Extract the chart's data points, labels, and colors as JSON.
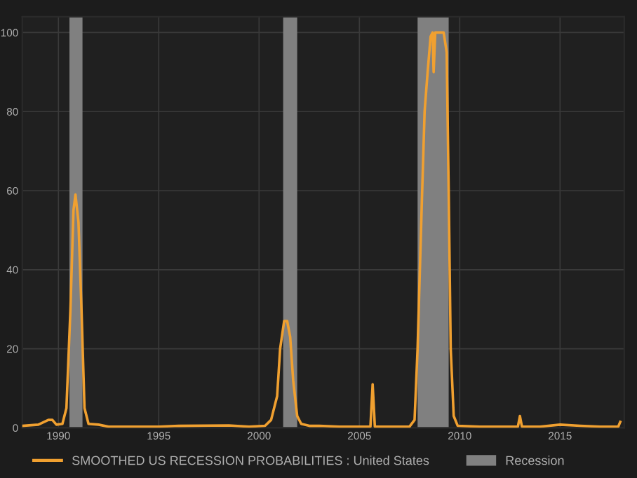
{
  "chart_data": {
    "type": "line",
    "series": [
      {
        "name": "SMOOTHED US RECESSION PROBABILITIES : United States",
        "color": "#f0a030",
        "x": [
          1988.2,
          1989.0,
          1989.5,
          1989.7,
          1989.9,
          1990.2,
          1990.4,
          1990.6,
          1990.75,
          1990.85,
          1991.0,
          1991.15,
          1991.3,
          1991.5,
          1992.0,
          1992.5,
          1993.5,
          1995.0,
          1996.0,
          1998.5,
          1999.5,
          2000.3,
          2000.6,
          2000.9,
          2001.05,
          2001.25,
          2001.4,
          2001.55,
          2001.7,
          2001.9,
          2002.1,
          2002.5,
          2003.0,
          2004.0,
          2005.0,
          2005.55,
          2005.66,
          2005.77,
          2006.5,
          2007.5,
          2007.75,
          2007.9,
          2008.1,
          2008.25,
          2008.4,
          2008.55,
          2008.65,
          2008.7,
          2008.78,
          2009.2,
          2009.35,
          2009.45,
          2009.55,
          2009.7,
          2009.9,
          2011.0,
          2012.0,
          2012.9,
          2013.0,
          2013.1,
          2014.0,
          2015.0,
          2016.0,
          2017.0,
          2017.9,
          2018.0
        ],
        "values": [
          0.5,
          0.8,
          2,
          2,
          0.8,
          1,
          5,
          30,
          55,
          59,
          52,
          30,
          5,
          1,
          0.8,
          0.3,
          0.3,
          0.3,
          0.5,
          0.6,
          0.3,
          0.5,
          2,
          8,
          20,
          27,
          27,
          23,
          12,
          3,
          1,
          0.5,
          0.5,
          0.3,
          0.3,
          0.3,
          11,
          0.3,
          0.3,
          0.3,
          2,
          20,
          55,
          80,
          90,
          99,
          100,
          90,
          100,
          100,
          95,
          60,
          20,
          3,
          0.5,
          0.3,
          0.3,
          0.3,
          3,
          0.3,
          0.3,
          0.8,
          0.5,
          0.3,
          0.3,
          1.5
        ]
      }
    ],
    "bands": [
      {
        "axis": "x",
        "from": 1990.55,
        "to": 1991.2,
        "label": "Recession",
        "color": "#808080"
      },
      {
        "axis": "x",
        "from": 2001.2,
        "to": 2001.9,
        "color": "#808080"
      },
      {
        "axis": "x",
        "from": 2007.9,
        "to": 2009.45,
        "color": "#808080"
      }
    ],
    "xlim": [
      1988.2,
      2018.2
    ],
    "xticks": [
      1990,
      1995,
      2000,
      2005,
      2010,
      2015
    ],
    "ylim": [
      0,
      104
    ],
    "yticks": [
      0,
      20,
      40,
      60,
      80,
      100
    ],
    "grid": true,
    "legend": "bottom"
  }
}
